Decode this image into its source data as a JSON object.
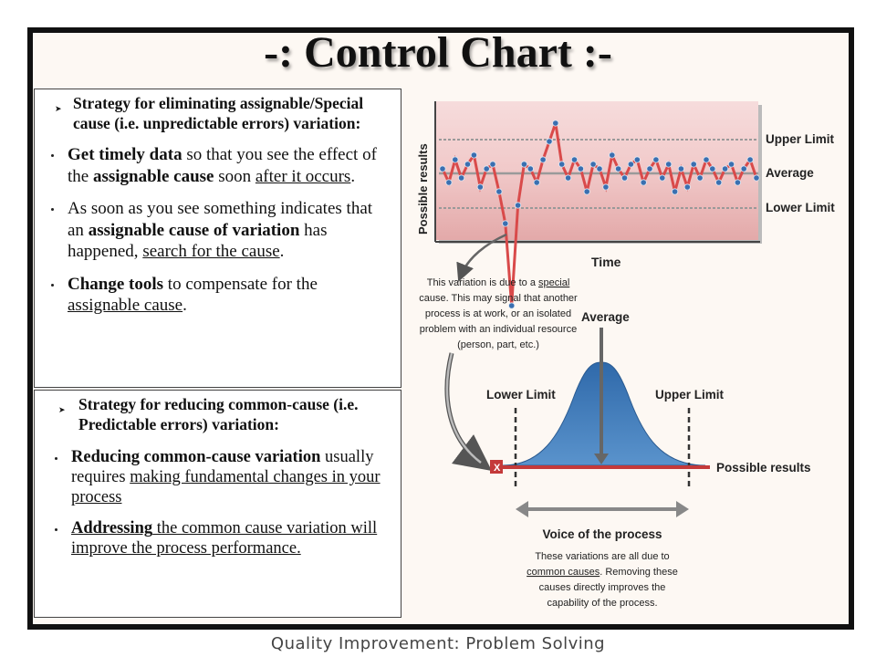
{
  "title": "-: Control Chart :-",
  "footer": "Quality Improvement: Problem Solving",
  "left_top": {
    "strategy": "Strategy for eliminating assignable/Special cause (i.e. unpredictable errors) variation:",
    "b1": {
      "a": "Get timely data",
      "b": " so that you see the effect of the ",
      "c": "assignable cause",
      "d": " soon ",
      "e": "after it occurs",
      "f": "."
    },
    "b2": {
      "a": "As soon as you see something indicates that an ",
      "b": "assignable cause of variation",
      "c": " has happened, ",
      "d": "search for the cause",
      "e": "."
    },
    "b3": {
      "a": "Change tools",
      "b": " to compensate for the ",
      "c": "assignable cause",
      "d": "."
    }
  },
  "left_bottom": {
    "strategy": "Strategy for reducing common-cause (i.e. Predictable errors) variation:",
    "b1": {
      "a": "Reducing common",
      "b": "-cause variation",
      "c": " usually requires ",
      "d": "making fundamental changes in your process"
    },
    "b2": {
      "a": "Addressing",
      "b": " the common cause variation will improve the process performance."
    }
  },
  "control_chart": {
    "ylabel": "Possible results",
    "xlabel": "Time",
    "upper_label": "Upper Limit",
    "average_label": "Average",
    "lower_label": "Lower Limit",
    "series_values": [
      0.05,
      -0.1,
      0.15,
      -0.05,
      0.1,
      0.2,
      -0.15,
      0.05,
      0.1,
      -0.2,
      -0.55,
      -1.45,
      -0.35,
      0.1,
      0.05,
      -0.1,
      0.15,
      0.35,
      0.55,
      0.1,
      -0.05,
      0.15,
      0.05,
      -0.2,
      0.1,
      0.05,
      -0.15,
      0.2,
      0.05,
      -0.05,
      0.1,
      0.15,
      -0.1,
      0.05,
      0.15,
      -0.05,
      0.1,
      -0.2,
      0.05,
      -0.15,
      0.1,
      -0.05,
      0.15,
      0.05,
      -0.1,
      0.05,
      0.1,
      -0.1,
      0.05,
      0.15,
      -0.05
    ]
  },
  "annotation_special": {
    "line1_pre": "This variation is due to a ",
    "line1_u": "special",
    "line2": "cause. This may signal that another",
    "line3": "process is at work, or an isolated",
    "line4": "problem with an individual resource",
    "line5": "(person, part, etc.)"
  },
  "distribution": {
    "average_label": "Average",
    "lower_label": "Lower Limit",
    "upper_label": "Upper Limit",
    "axis_label": "Possible results",
    "out_marker": "X",
    "voice_label": "Voice of the process",
    "note_line1": "These variations are all due to",
    "note_line2_u": "common causes",
    "note_line2_rest": ". Removing these",
    "note_line3": "causes directly improves the",
    "note_line4": "capability of the process."
  },
  "colors": {
    "band": "#e9b8b8",
    "band_center": "#f3d3d3",
    "series_line": "#d94a4a",
    "point": "#3a6fb0",
    "bell": "#3f7ab8",
    "axis_red": "#c43a3a"
  }
}
